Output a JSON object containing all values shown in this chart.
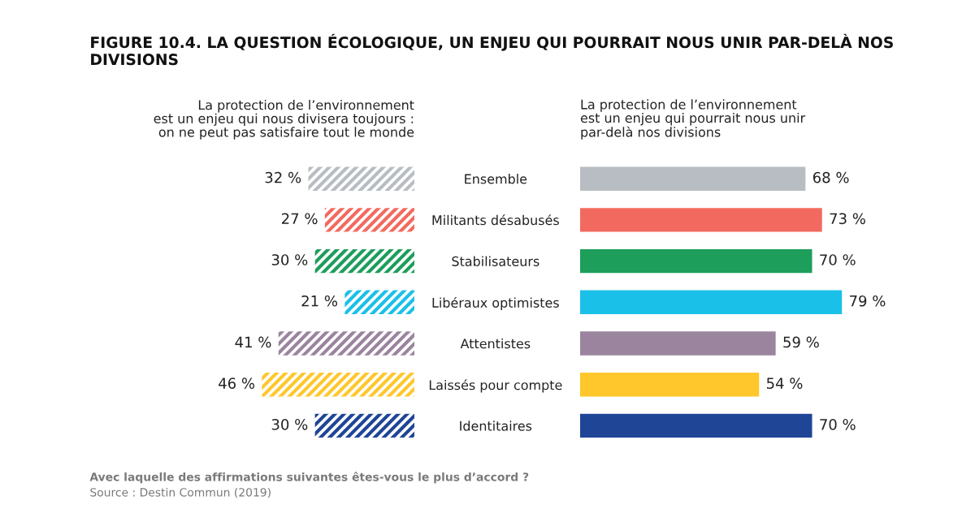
{
  "chart_data": [
    {
      "type": "bar",
      "orientation": "horizontal",
      "title": "FIGURE 10.4. LA QUESTION ÉCOLOGIQUE, UN ENJEU QUI POURRAIT NOUS UNIR PAR-DELÀ NOS DIVISIONS",
      "subtitle": "La protection de l’environnement\nest un enjeu qui pourrait nous unir\npar-delà nos divisions",
      "categories": [
        "Ensemble",
        "Militants désabusés",
        "Stabilisateurs",
        "Libéraux optimistes",
        "Attentistes",
        "Laissés pour compte",
        "Identitaires"
      ],
      "values": [
        68,
        73,
        70,
        79,
        59,
        54,
        70
      ],
      "value_labels": [
        "68 %",
        "73 %",
        "70 %",
        "79 %",
        "59 %",
        "54 %",
        "70 %"
      ],
      "colors": [
        "#b7bdc2",
        "#f26a5f",
        "#1d9e5b",
        "#1ac0e8",
        "#9a849e",
        "#ffc72c",
        "#1f4596"
      ],
      "grid": false,
      "legend": false,
      "annotations": [
        "Avec laquelle des affirmations suivantes êtes-vous le plus d’accord ?",
        "Source : Destin Commun (2019)"
      ]
    },
    {
      "type": "bar",
      "orientation": "horizontal",
      "subtitle": "La protection de l’environnement\nest un enjeu qui nous divisera toujours :\non ne peut pas satisfaire tout le monde",
      "values": [
        32,
        27,
        30,
        21,
        41,
        46,
        30
      ],
      "value_labels": [
        "32 %",
        "27 %",
        "30 %",
        "21 %",
        "41 %",
        "46 %",
        "30 %"
      ],
      "colors": [
        "#b7bdc2",
        "#f26a5f",
        "#1d9e5b",
        "#1ac0e8",
        "#9a849e",
        "#ffc72c",
        "#1f4596"
      ],
      "grid": false,
      "legend": false
    }
  ]
}
